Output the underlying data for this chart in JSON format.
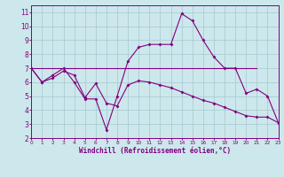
{
  "x": [
    0,
    1,
    2,
    3,
    4,
    5,
    6,
    7,
    8,
    9,
    10,
    11,
    12,
    13,
    14,
    15,
    16,
    17,
    18,
    19,
    20,
    21,
    22,
    23
  ],
  "line1": [
    7.0,
    6.0,
    6.5,
    7.0,
    6.0,
    4.8,
    4.8,
    2.6,
    5.0,
    7.5,
    8.5,
    8.7,
    8.7,
    8.7,
    10.9,
    10.4,
    9.0,
    7.8,
    7.0,
    7.0,
    5.2,
    5.5,
    5.0,
    3.1
  ],
  "line2_x": [
    0,
    21
  ],
  "line2_y": [
    7.0,
    7.0
  ],
  "line3": [
    7.0,
    6.0,
    6.3,
    6.8,
    6.5,
    4.9,
    5.9,
    4.5,
    4.3,
    5.8,
    6.1,
    6.0,
    5.8,
    5.6,
    5.3,
    5.0,
    4.7,
    4.5,
    4.2,
    3.9,
    3.6,
    3.5,
    3.5,
    3.1
  ],
  "background_color": "#cde8ec",
  "grid_color": "#aacdd4",
  "line_color": "#800080",
  "xlim": [
    0,
    23
  ],
  "ylim": [
    2,
    11.5
  ],
  "xlabel": "Windchill (Refroidissement éolien,°C)",
  "yticks": [
    2,
    3,
    4,
    5,
    6,
    7,
    8,
    9,
    10,
    11
  ],
  "xticks": [
    0,
    1,
    2,
    3,
    4,
    5,
    6,
    7,
    8,
    9,
    10,
    11,
    12,
    13,
    14,
    15,
    16,
    17,
    18,
    19,
    20,
    21,
    22,
    23
  ]
}
